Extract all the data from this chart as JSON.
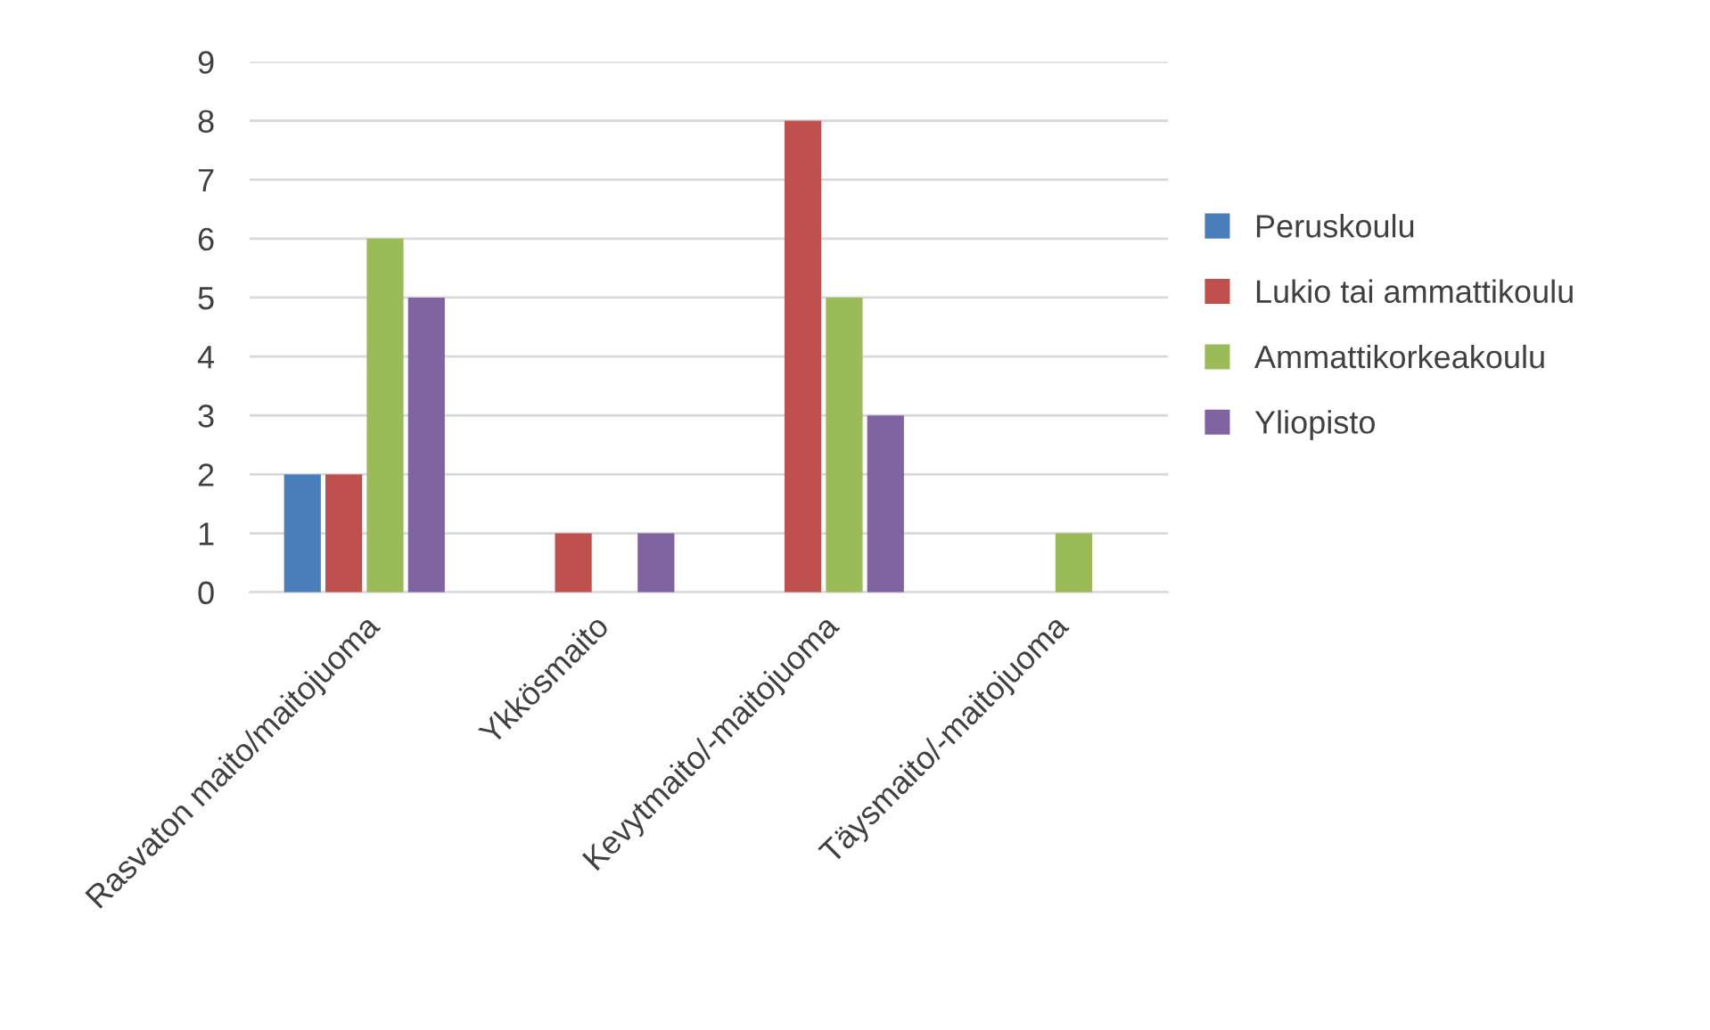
{
  "chart_data": {
    "type": "bar",
    "categories": [
      "Rasvaton maito/maitojuoma",
      "Ykkösmaito",
      "Kevytmaito/-maitojuoma",
      "Täysmaito/-maitojuoma"
    ],
    "series": [
      {
        "name": "Peruskoulu",
        "color": "#4a7ebb",
        "values": [
          2,
          0,
          0,
          0
        ]
      },
      {
        "name": "Lukio tai ammattikoulu",
        "color": "#c0504d",
        "values": [
          2,
          1,
          8,
          0
        ]
      },
      {
        "name": "Ammattikorkeakoulu",
        "color": "#9bbb59",
        "values": [
          6,
          0,
          5,
          1
        ]
      },
      {
        "name": "Yliopisto",
        "color": "#8064a2",
        "values": [
          5,
          1,
          3,
          0
        ]
      }
    ],
    "ylim": [
      0,
      9
    ],
    "yticks": [
      0,
      1,
      2,
      3,
      4,
      5,
      6,
      7,
      8,
      9
    ],
    "grid": "y",
    "legend": "right"
  }
}
